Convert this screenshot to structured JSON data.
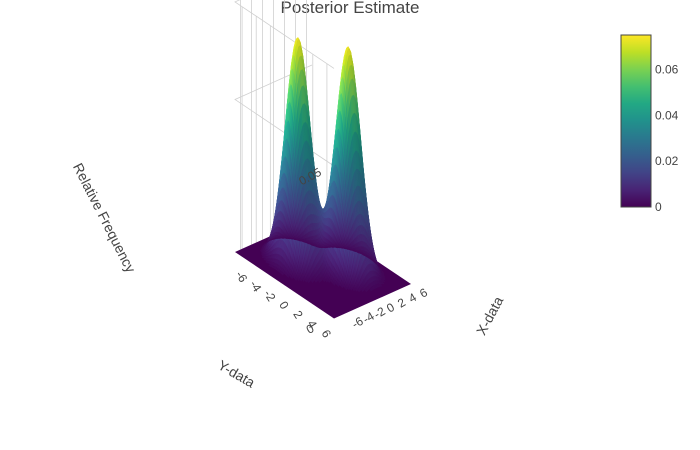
{
  "chart_data": {
    "type": "surface",
    "title": "Posterior Estimate",
    "x_axis": {
      "label": "X-data",
      "range": [
        -7,
        7
      ],
      "ticks": [
        -6,
        -4,
        -2,
        0,
        2,
        4,
        6
      ]
    },
    "y_axis": {
      "label": "Y-data",
      "range": [
        -7,
        7
      ],
      "ticks": [
        -6,
        -4,
        -2,
        0,
        2,
        4,
        6
      ]
    },
    "z_axis": {
      "label": "Relative Frequency",
      "ticks": [
        0,
        0.05
      ]
    },
    "colorscale": "viridis",
    "colorbar": {
      "range": [
        0,
        0.075
      ],
      "ticks": [
        0,
        0.02,
        0.04,
        0.06
      ]
    },
    "peaks": [
      {
        "x": -2,
        "y": -2,
        "height": 0.074,
        "sigma": 1.4
      },
      {
        "x": 2,
        "y": 2,
        "height": 0.074,
        "sigma": 1.4
      }
    ],
    "grid": true
  }
}
